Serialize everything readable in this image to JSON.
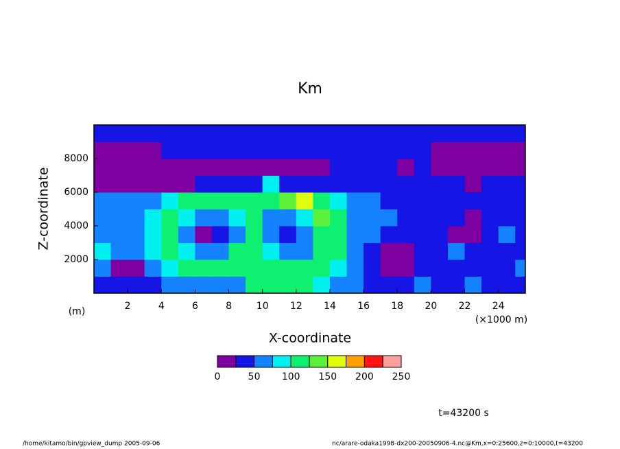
{
  "chart_data": {
    "type": "contour",
    "title": "Km",
    "x_label": "X-coordinate",
    "y_label": "Z-coordinate",
    "x_unit": "(×1000 m)",
    "y_unit": "(m)",
    "time_label": "t=43200 s",
    "footer_left": "/home/kitamo/bin/gpview_dump  2005-09-06",
    "footer_right": "nc/arare-odaka1998-dx200-20050906-4.nc@Km,x=0:25600,z=0:10000,t=43200",
    "xlim": [
      0,
      25.6
    ],
    "ylim": [
      0,
      10000
    ],
    "xticks": [
      2,
      4,
      6,
      8,
      10,
      12,
      14,
      16,
      18,
      20,
      22,
      24
    ],
    "yticks": [
      2000,
      4000,
      6000,
      8000
    ],
    "x": [
      0.5,
      1.5,
      2.5,
      3.5,
      4.5,
      5.5,
      6.5,
      7.5,
      8.5,
      9.5,
      10.5,
      11.5,
      12.5,
      13.5,
      14.5,
      15.5,
      16.5,
      17.5,
      18.5,
      19.5,
      20.5,
      21.5,
      22.5,
      23.5,
      24.5,
      25.5
    ],
    "y": [
      500,
      1500,
      2500,
      3500,
      4500,
      5500,
      6500,
      7500,
      8500,
      9500
    ],
    "z": [
      [
        40,
        30,
        45,
        40,
        60,
        70,
        60,
        60,
        70,
        110,
        120,
        110,
        100,
        90,
        60,
        60,
        40,
        40,
        40,
        60,
        40,
        40,
        60,
        40,
        40,
        40
      ],
      [
        60,
        20,
        20,
        70,
        90,
        110,
        120,
        120,
        110,
        120,
        110,
        100,
        110,
        110,
        90,
        60,
        40,
        20,
        20,
        40,
        40,
        40,
        30,
        40,
        40,
        60
      ],
      [
        80,
        60,
        60,
        80,
        110,
        90,
        60,
        60,
        100,
        110,
        80,
        60,
        70,
        110,
        110,
        70,
        40,
        20,
        20,
        40,
        40,
        60,
        40,
        40,
        40,
        40
      ],
      [
        70,
        60,
        60,
        80,
        120,
        70,
        20,
        40,
        60,
        120,
        60,
        40,
        70,
        120,
        110,
        60,
        60,
        40,
        40,
        40,
        40,
        20,
        20,
        40,
        60,
        40
      ],
      [
        60,
        60,
        70,
        90,
        110,
        90,
        60,
        60,
        90,
        110,
        70,
        60,
        90,
        130,
        110,
        70,
        60,
        60,
        40,
        40,
        40,
        40,
        20,
        40,
        40,
        40
      ],
      [
        60,
        60,
        60,
        70,
        80,
        110,
        120,
        120,
        110,
        100,
        120,
        140,
        150,
        120,
        80,
        60,
        60,
        40,
        40,
        40,
        40,
        40,
        40,
        40,
        40,
        40
      ],
      [
        15,
        15,
        15,
        15,
        20,
        20,
        30,
        40,
        40,
        40,
        90,
        30,
        40,
        40,
        40,
        40,
        40,
        40,
        40,
        40,
        30,
        30,
        20,
        40,
        40,
        40
      ],
      [
        20,
        20,
        20,
        20,
        20,
        20,
        20,
        20,
        20,
        20,
        20,
        20,
        20,
        20,
        40,
        40,
        40,
        40,
        20,
        40,
        20,
        20,
        20,
        20,
        20,
        20
      ],
      [
        20,
        20,
        20,
        20,
        40,
        40,
        40,
        40,
        40,
        40,
        40,
        40,
        40,
        40,
        40,
        40,
        40,
        40,
        40,
        40,
        20,
        20,
        20,
        20,
        20,
        20
      ],
      [
        30,
        30,
        30,
        40,
        40,
        40,
        40,
        40,
        40,
        40,
        40,
        40,
        40,
        40,
        40,
        40,
        40,
        40,
        40,
        40,
        40,
        40,
        40,
        40,
        40,
        40
      ]
    ],
    "levels": [
      0,
      25,
      50,
      75,
      100,
      125,
      150,
      175,
      200,
      225,
      250
    ],
    "level_ticks": [
      0,
      50,
      100,
      150,
      200,
      250
    ],
    "colors": [
      "#7f00a0",
      "#1515e6",
      "#1582ff",
      "#00f0f0",
      "#10f070",
      "#5ff03c",
      "#e0ff10",
      "#ffa000",
      "#ff1414",
      "#ffa0a0"
    ]
  }
}
